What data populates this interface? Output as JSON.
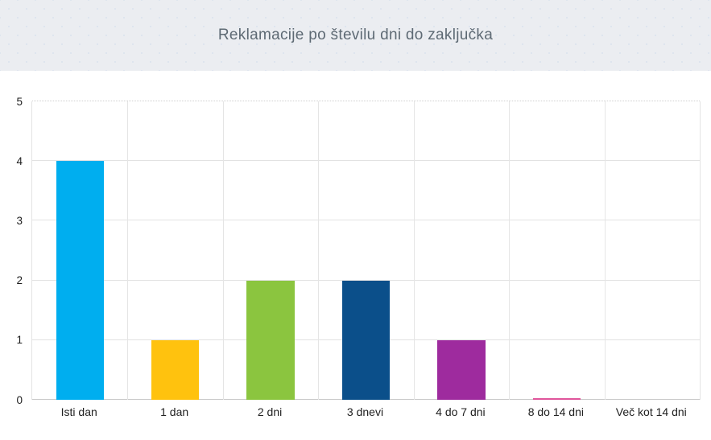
{
  "header": {
    "title": "Reklamacije po številu dni do zaključka"
  },
  "chart_data": {
    "type": "bar",
    "title": "Reklamacije po številu dni do zaključka",
    "categories": [
      "Isti dan",
      "1 dan",
      "2 dni",
      "3 dnevi",
      "4 do 7 dni",
      "8 do 14 dni",
      "Več kot 14 dni"
    ],
    "values": [
      4,
      1,
      2,
      2,
      1,
      0,
      0
    ],
    "bar_colors": [
      "#00aeef",
      "#ffc20e",
      "#8bc53f",
      "#0b4f8a",
      "#9e2b9e",
      "#e0559b",
      "#e0559b"
    ],
    "zero_bar_sliver": [
      false,
      false,
      false,
      false,
      false,
      true,
      false
    ],
    "xlabel": "",
    "ylabel": "",
    "ylim": [
      0,
      5
    ],
    "y_ticks": [
      0,
      1,
      2,
      3,
      4,
      5
    ],
    "grid": "both",
    "legend": "none",
    "colors": {
      "header_bg": "#ebedf1",
      "grid_line": "#e2e2e2",
      "axis_line": "#c9c9c9",
      "title_text": "#5e6a74",
      "tick_text": "#1c1c1c"
    }
  }
}
